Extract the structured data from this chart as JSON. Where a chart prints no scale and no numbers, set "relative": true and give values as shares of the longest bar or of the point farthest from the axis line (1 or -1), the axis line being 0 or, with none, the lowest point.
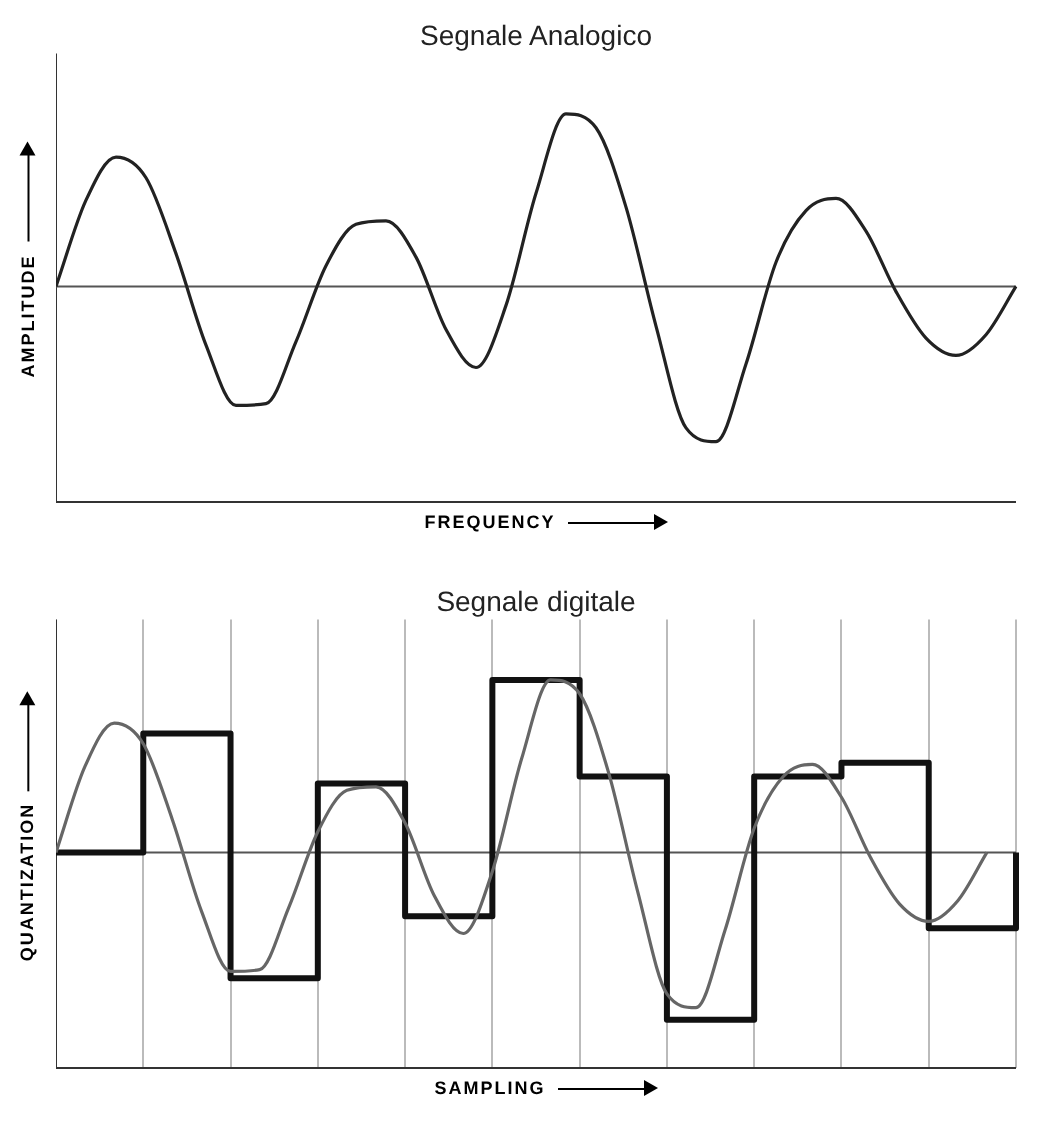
{
  "chart_data": [
    {
      "type": "line",
      "title": "Segnale Analogico",
      "xlabel": "FREQUENCY",
      "ylabel": "AMPLITUDE",
      "relative": true,
      "legend": false,
      "grid": false,
      "marker": "none",
      "categories": [
        null,
        null,
        null,
        null,
        null,
        null,
        null,
        null,
        null,
        null,
        null,
        null,
        null,
        null,
        null,
        null,
        null,
        null,
        null,
        null,
        null,
        null,
        null,
        null,
        null,
        null,
        null,
        null,
        null,
        null,
        null,
        null,
        null
      ],
      "series": [
        {
          "color": "#222222",
          "values": [
            0,
            0.5,
            0.75,
            0.63,
            0.19,
            -0.34,
            -0.69,
            -0.68,
            -0.32,
            0.12,
            0.36,
            0.38,
            0.17,
            -0.25,
            -0.47,
            -0.11,
            0.54,
            1,
            0.92,
            0.46,
            -0.23,
            -0.82,
            -0.9,
            -0.45,
            0.14,
            0.44,
            0.51,
            0.32,
            -0.03,
            -0.3,
            -0.4,
            -0.28,
            0
          ]
        }
      ]
    },
    {
      "type": "line",
      "title": "Segnale digitale",
      "xlabel": "SAMPLING",
      "ylabel": "QUANTIZATION",
      "relative": true,
      "legend": false,
      "grid": "x",
      "marker": "none",
      "categories": [
        null,
        null,
        null,
        null,
        null,
        null,
        null,
        null,
        null,
        null,
        null,
        null,
        null,
        null,
        null,
        null,
        null,
        null,
        null,
        null,
        null,
        null,
        null,
        null,
        null,
        null,
        null,
        null,
        null,
        null,
        null,
        null,
        null,
        null
      ],
      "series": [
        {
          "color": "#666666",
          "values": [
            0,
            0.5,
            0.75,
            0.63,
            0.19,
            -0.34,
            -0.69,
            -0.68,
            -0.32,
            0.12,
            0.36,
            0.38,
            0.17,
            -0.25,
            -0.47,
            -0.11,
            0.54,
            1,
            0.92,
            0.46,
            -0.23,
            -0.82,
            -0.9,
            -0.45,
            0.14,
            0.44,
            0.51,
            0.32,
            -0.03,
            -0.3,
            -0.4,
            -0.28,
            0,
            null
          ]
        },
        {
          "type": "step",
          "color": "#111111",
          "values": [
            0,
            null,
            null,
            0.69,
            null,
            null,
            -0.73,
            null,
            null,
            0.4,
            null,
            null,
            -0.37,
            null,
            null,
            1,
            null,
            null,
            0.44,
            null,
            null,
            -0.97,
            null,
            null,
            0.44,
            null,
            null,
            0.52,
            null,
            null,
            -0.44,
            null,
            null,
            0
          ]
        }
      ]
    }
  ]
}
